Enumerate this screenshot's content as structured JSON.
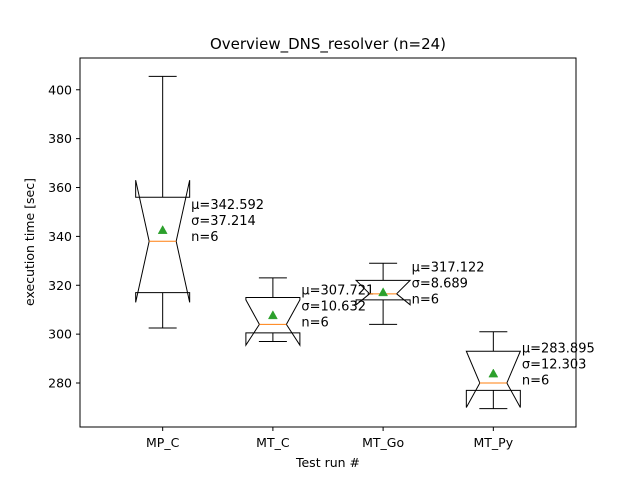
{
  "chart_data": {
    "type": "box",
    "title": "Overview_DNS_resolver (n=24)",
    "xlabel": "Test run #",
    "ylabel": "execution time [sec]",
    "ylim": [
      262,
      413
    ],
    "yticks": [
      280,
      300,
      320,
      340,
      360,
      380,
      400
    ],
    "notched": true,
    "show_means": true,
    "grid": false,
    "colors": {
      "box": "#000000",
      "median": "#ff7f0e",
      "mean_marker": "#2ca02c"
    },
    "categories": [
      "MP_C",
      "MT_C",
      "MT_Go",
      "MT_Py"
    ],
    "boxes": [
      {
        "name": "MP_C",
        "whisker_low": 302.5,
        "q1": 317,
        "median": 338,
        "q3": 356,
        "whisker_high": 405.5,
        "notch_low": 313,
        "notch_high": 363,
        "mean": 342.592
      },
      {
        "name": "MT_C",
        "whisker_low": 297,
        "q1": 300.5,
        "median": 304,
        "q3": 315,
        "whisker_high": 323,
        "notch_low": 295.5,
        "notch_high": 314,
        "mean": 307.721
      },
      {
        "name": "MT_Go",
        "whisker_low": 304,
        "q1": 314,
        "median": 316.5,
        "q3": 322,
        "whisker_high": 329,
        "notch_low": 312,
        "notch_high": 322,
        "mean": 317.122
      },
      {
        "name": "MT_Py",
        "whisker_low": 269.5,
        "q1": 277,
        "median": 280,
        "q3": 293,
        "whisker_high": 301,
        "notch_low": 270,
        "notch_high": 293,
        "mean": 283.895
      }
    ],
    "annotations": [
      {
        "lines": [
          "μ=342.592",
          "σ=37.214",
          "n=6"
        ]
      },
      {
        "lines": [
          "μ=307.721",
          "σ=10.632",
          "n=6"
        ]
      },
      {
        "lines": [
          "μ=317.122",
          "σ=8.689",
          "n=6"
        ]
      },
      {
        "lines": [
          "μ=283.895",
          "σ=12.303",
          "n=6"
        ]
      }
    ]
  }
}
